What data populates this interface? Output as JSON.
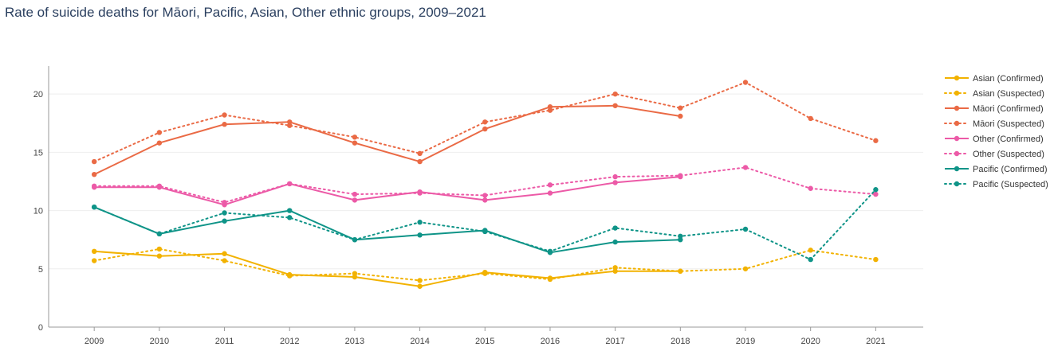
{
  "chart_data": {
    "type": "line",
    "title": "Rate of suicide deaths for Māori, Pacific, Asian, Other ethnic groups, 2009–2021",
    "xlabel": "",
    "ylabel": "",
    "x": [
      2009,
      2010,
      2011,
      2012,
      2013,
      2014,
      2015,
      2016,
      2017,
      2018,
      2019,
      2020,
      2021
    ],
    "ylim": [
      0,
      22.4
    ],
    "yticks": [
      0,
      5,
      10,
      15,
      20
    ],
    "grid": true,
    "legend_position": "right",
    "series": [
      {
        "name": "Asian (Confirmed)",
        "color": "#f2b200",
        "dash": "solid",
        "values": [
          6.5,
          6.1,
          6.3,
          4.5,
          4.3,
          3.5,
          4.7,
          4.2,
          4.8,
          4.8,
          null,
          null,
          null
        ]
      },
      {
        "name": "Asian (Suspected)",
        "color": "#f2b200",
        "dash": "dotted",
        "values": [
          5.7,
          6.7,
          5.7,
          4.4,
          4.6,
          4.0,
          4.6,
          4.1,
          5.1,
          4.8,
          5.0,
          6.6,
          5.8
        ]
      },
      {
        "name": "Māori (Confirmed)",
        "color": "#ea6a45",
        "dash": "solid",
        "values": [
          13.1,
          15.8,
          17.4,
          17.6,
          15.8,
          14.2,
          17.0,
          18.9,
          19.0,
          18.1,
          null,
          null,
          null
        ]
      },
      {
        "name": "Māori (Suspected)",
        "color": "#ea6a45",
        "dash": "dotted",
        "values": [
          14.2,
          16.7,
          18.2,
          17.3,
          16.3,
          14.9,
          17.6,
          18.6,
          20.0,
          18.8,
          21.0,
          17.9,
          16.0
        ]
      },
      {
        "name": "Other (Confirmed)",
        "color": "#ec5aa7",
        "dash": "solid",
        "values": [
          12.0,
          12.0,
          10.5,
          12.3,
          10.9,
          11.6,
          10.9,
          11.5,
          12.4,
          12.9,
          null,
          null,
          null
        ]
      },
      {
        "name": "Other (Suspected)",
        "color": "#ec5aa7",
        "dash": "dotted",
        "values": [
          12.1,
          12.1,
          10.7,
          12.3,
          11.4,
          11.5,
          11.3,
          12.2,
          12.9,
          13.0,
          13.7,
          11.9,
          11.4
        ]
      },
      {
        "name": "Pacific (Confirmed)",
        "color": "#0f9488",
        "dash": "solid",
        "values": [
          10.3,
          8.0,
          9.1,
          10.0,
          7.5,
          7.9,
          8.3,
          6.4,
          7.3,
          7.5,
          null,
          null,
          null
        ]
      },
      {
        "name": "Pacific (Suspected)",
        "color": "#0f9488",
        "dash": "dotted",
        "values": [
          10.3,
          8.0,
          9.8,
          9.4,
          7.5,
          9.0,
          8.2,
          6.5,
          8.5,
          7.8,
          8.4,
          5.8,
          11.8
        ]
      }
    ]
  }
}
